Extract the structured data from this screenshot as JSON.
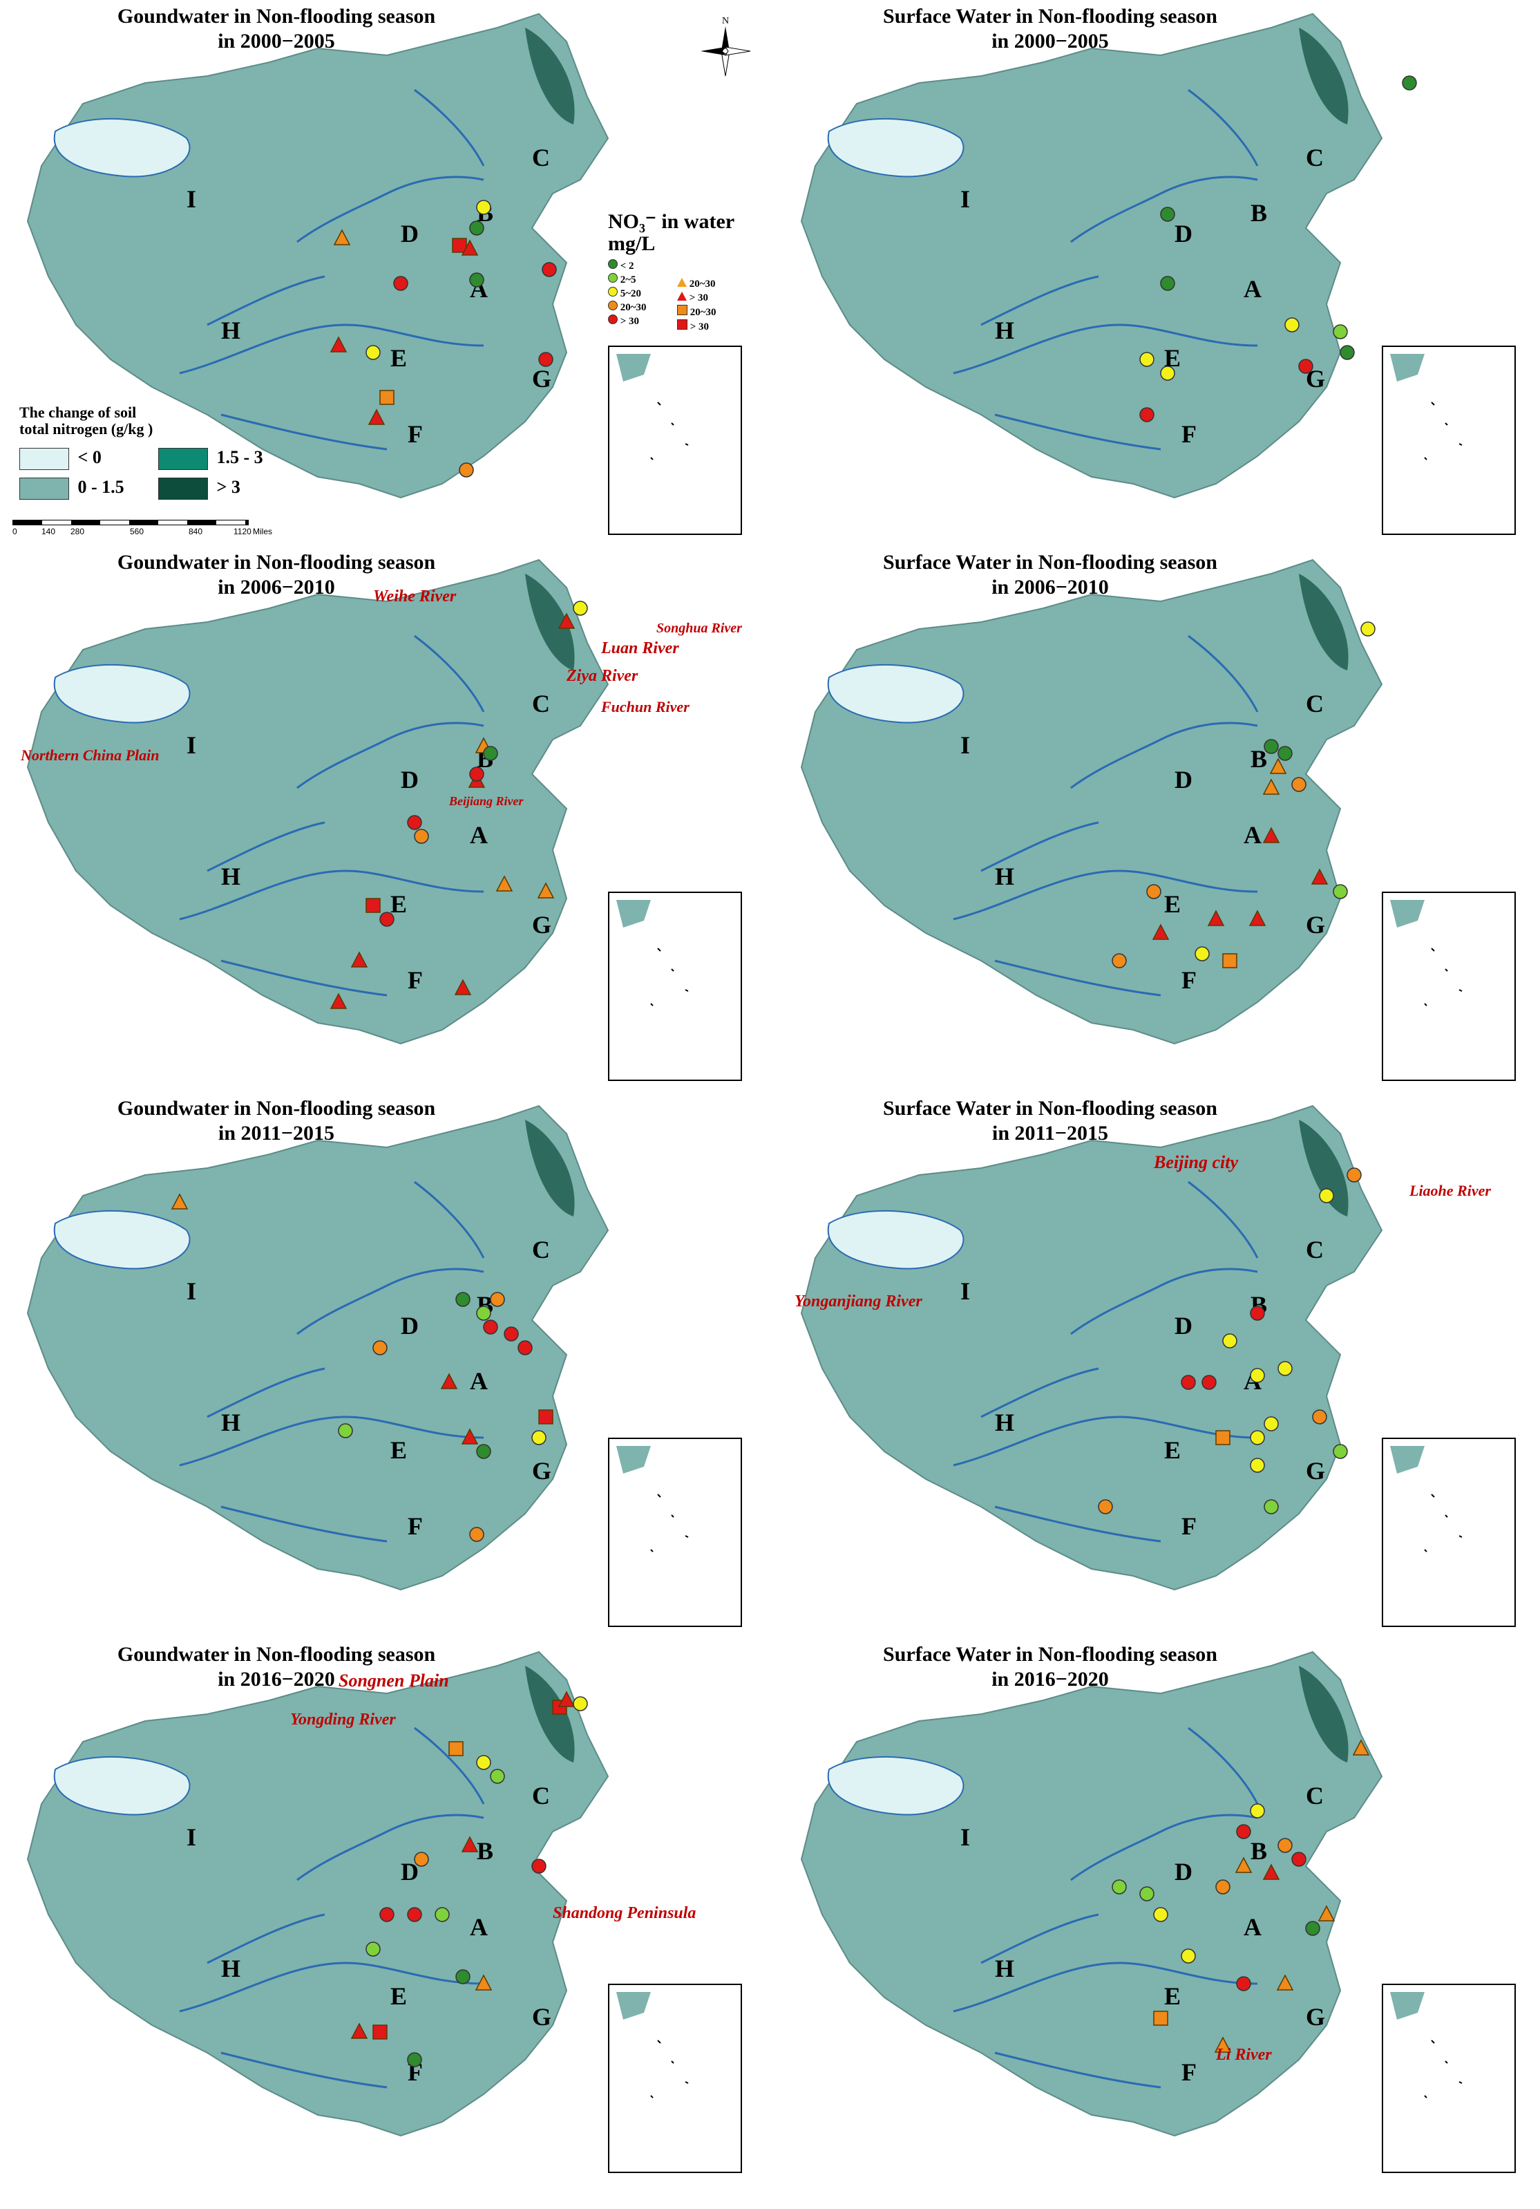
{
  "colors": {
    "land": "#7fb3ad",
    "land_light": "#dff3f4",
    "land_mid": "#0e8a73",
    "land_dark": "#0c4d3c",
    "river": "#2a6bb3",
    "marker_lt2": "#2e8b2e",
    "marker_2_5": "#7fd23a",
    "marker_5_20": "#f2f21a",
    "marker_20_30": "#f08a1a",
    "marker_gt30": "#e01818",
    "annot_red": "#c00000"
  },
  "compass": {
    "label": "N"
  },
  "soil_legend": {
    "title_line1": "The change of soil",
    "title_line2": "total nitrogen (g/kg )",
    "items": [
      {
        "label": "< 0",
        "color_key": "land_light"
      },
      {
        "label": "1.5 - 3",
        "color_key": "land_mid"
      },
      {
        "label": "0 - 1.5",
        "color_key": "land"
      },
      {
        "label": "> 3",
        "color_key": "land_dark"
      }
    ]
  },
  "scale_bar": {
    "ticks": [
      "0",
      "140",
      "280",
      "560",
      "840",
      "1120"
    ],
    "unit": "Miles"
  },
  "no3_legend": {
    "title": "NO₃⁻ in water",
    "unit": "mg/L",
    "circles": [
      "< 2",
      "2~5",
      "5~20",
      "20~30",
      "> 30"
    ],
    "triangles": [
      "20~30",
      "> 30"
    ],
    "squares": [
      "20~30",
      "> 30"
    ]
  },
  "region_letters": [
    "A",
    "B",
    "C",
    "D",
    "E",
    "F",
    "G",
    "H",
    "I"
  ],
  "panels": [
    {
      "title_line1": "Goundwater in Non-flooding season",
      "title_line2": "in 2000−2005",
      "annotations": []
    },
    {
      "title_line1": "Surface Water in Non-flooding season",
      "title_line2": "in 2000−2005",
      "annotations": []
    },
    {
      "title_line1": "Goundwater in Non-flooding season",
      "title_line2": "in 2006−2010",
      "annotations": [
        "Weihe River",
        "Songhua River",
        "Luan River",
        "Ziya River",
        "Fuchun River",
        "Northern China Plain",
        "Beijiang River"
      ]
    },
    {
      "title_line1": "Surface Water in Non-flooding season",
      "title_line2": "in 2006−2010",
      "annotations": []
    },
    {
      "title_line1": "Goundwater in Non-flooding season",
      "title_line2": "in 2011−2015",
      "annotations": []
    },
    {
      "title_line1": "Surface Water in Non-flooding season",
      "title_line2": "in 2011−2015",
      "annotations": [
        "Beijing city",
        "Liaohe River",
        "Yonganjiang River"
      ]
    },
    {
      "title_line1": "Goundwater in Non-flooding season",
      "title_line2": "in 2016−2020",
      "annotations": [
        "Songnen Plain",
        "Yongding River",
        "Shandong Peninsula"
      ]
    },
    {
      "title_line1": "Surface Water in Non-flooding season",
      "title_line2": "in 2016−2020",
      "annotations": [
        "Li River"
      ]
    }
  ]
}
